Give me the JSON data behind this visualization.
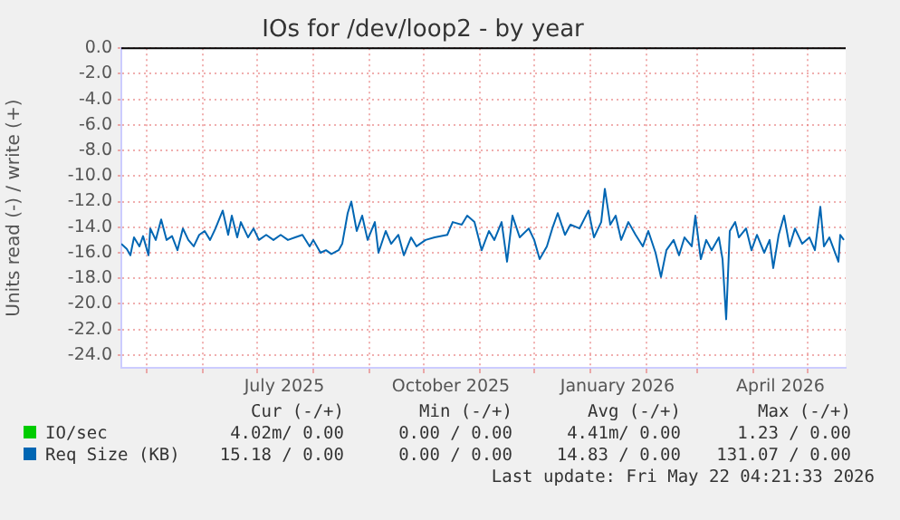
{
  "chart_data": {
    "type": "line",
    "title": "IOs for /dev/loop2 - by year",
    "ylabel": "Units read (-) / write (+)",
    "xlim": [
      "2025-04-17",
      "2026-05-22"
    ],
    "xticks": [
      {
        "value": "2025-05-01",
        "label": null
      },
      {
        "value": "2025-06-01",
        "label": null
      },
      {
        "value": "2025-07-01",
        "label": null
      },
      {
        "value": "2025-07-16",
        "label": "July 2025"
      },
      {
        "value": "2025-08-01",
        "label": null
      },
      {
        "value": "2025-09-01",
        "label": null
      },
      {
        "value": "2025-10-01",
        "label": null
      },
      {
        "value": "2025-10-16",
        "label": "October 2025"
      },
      {
        "value": "2025-11-01",
        "label": null
      },
      {
        "value": "2025-12-01",
        "label": null
      },
      {
        "value": "2026-01-01",
        "label": null
      },
      {
        "value": "2026-01-16",
        "label": "January 2026"
      },
      {
        "value": "2026-02-01",
        "label": null
      },
      {
        "value": "2026-03-01",
        "label": null
      },
      {
        "value": "2026-04-01",
        "label": null
      },
      {
        "value": "2026-04-16",
        "label": "April 2026"
      },
      {
        "value": "2026-05-01",
        "label": null
      }
    ],
    "ylim": [
      -25,
      0
    ],
    "yticks": [
      {
        "value": 0,
        "label": "0.0"
      },
      {
        "value": -2,
        "label": "-2.0"
      },
      {
        "value": -4,
        "label": "-4.0"
      },
      {
        "value": -6,
        "label": "-6.0"
      },
      {
        "value": -8,
        "label": "-8.0"
      },
      {
        "value": -10,
        "label": "-10.0"
      },
      {
        "value": -12,
        "label": "-12.0"
      },
      {
        "value": -14,
        "label": "-14.0"
      },
      {
        "value": -16,
        "label": "-16.0"
      },
      {
        "value": -18,
        "label": "-18.0"
      },
      {
        "value": -20,
        "label": "-20.0"
      },
      {
        "value": -22,
        "label": "-22.0"
      },
      {
        "value": -24,
        "label": "-24.0"
      }
    ],
    "grid": true,
    "legend": "bottom",
    "ref_lines": [
      {
        "axis": "y",
        "value": 0,
        "color": "#000000"
      }
    ],
    "series": [
      {
        "name": "IO/sec",
        "color": "#00cc00"
      },
      {
        "name": "Req Size (KB)",
        "color": "#0066b3",
        "x": [
          "2025-04-17",
          "2025-04-20",
          "2025-04-22",
          "2025-04-24",
          "2025-04-27",
          "2025-04-29",
          "2025-05-02",
          "2025-05-03",
          "2025-05-06",
          "2025-05-09",
          "2025-05-12",
          "2025-05-15",
          "2025-05-18",
          "2025-05-21",
          "2025-05-24",
          "2025-05-27",
          "2025-05-30",
          "2025-06-02",
          "2025-06-05",
          "2025-06-08",
          "2025-06-12",
          "2025-06-15",
          "2025-06-17",
          "2025-06-20",
          "2025-06-22",
          "2025-06-26",
          "2025-06-29",
          "2025-07-02",
          "2025-07-06",
          "2025-07-10",
          "2025-07-14",
          "2025-07-18",
          "2025-07-22",
          "2025-07-26",
          "2025-07-30",
          "2025-08-01",
          "2025-08-05",
          "2025-08-08",
          "2025-08-11",
          "2025-08-15",
          "2025-08-17",
          "2025-08-20",
          "2025-08-22",
          "2025-08-25",
          "2025-08-28",
          "2025-08-31",
          "2025-09-04",
          "2025-09-06",
          "2025-09-10",
          "2025-09-13",
          "2025-09-17",
          "2025-09-20",
          "2025-09-24",
          "2025-09-27",
          "2025-10-02",
          "2025-10-07",
          "2025-10-14",
          "2025-10-17",
          "2025-10-22",
          "2025-10-25",
          "2025-10-29",
          "2025-11-02",
          "2025-11-06",
          "2025-11-09",
          "2025-11-13",
          "2025-11-16",
          "2025-11-19",
          "2025-11-23",
          "2025-11-28",
          "2025-12-01",
          "2025-12-04",
          "2025-12-08",
          "2025-12-11",
          "2025-12-14",
          "2025-12-18",
          "2025-12-21",
          "2025-12-26",
          "2025-12-31",
          "2026-01-03",
          "2026-01-07",
          "2026-01-09",
          "2026-01-12",
          "2026-01-15",
          "2026-01-18",
          "2026-01-22",
          "2026-01-26",
          "2026-01-30",
          "2026-02-02",
          "2026-02-06",
          "2026-02-09",
          "2026-02-12",
          "2026-02-16",
          "2026-02-19",
          "2026-02-22",
          "2026-02-26",
          "2026-02-28",
          "2026-03-03",
          "2026-03-06",
          "2026-03-09",
          "2026-03-13",
          "2026-03-15",
          "2026-03-17",
          "2026-03-19",
          "2026-03-22",
          "2026-03-24",
          "2026-03-28",
          "2026-03-31",
          "2026-04-03",
          "2026-04-07",
          "2026-04-10",
          "2026-04-12",
          "2026-04-15",
          "2026-04-18",
          "2026-04-21",
          "2026-04-24",
          "2026-04-28",
          "2026-05-02",
          "2026-05-05",
          "2026-05-08",
          "2026-05-10",
          "2026-05-13",
          "2026-05-18",
          "2026-05-19",
          "2026-05-21"
        ],
        "values": [
          -15.3,
          -15.7,
          -16.2,
          -14.8,
          -15.5,
          -14.7,
          -16.2,
          -14.1,
          -15,
          -13.4,
          -15,
          -14.7,
          -15.8,
          -14.1,
          -15,
          -15.5,
          -14.6,
          -14.3,
          -15,
          -14.1,
          -12.7,
          -14.6,
          -13.1,
          -14.8,
          -13.6,
          -14.8,
          -14.1,
          -15,
          -14.6,
          -15,
          -14.6,
          -15,
          -14.8,
          -14.6,
          -15.5,
          -15,
          -16,
          -15.8,
          -16.1,
          -15.8,
          -15.3,
          -12.9,
          -12,
          -14.3,
          -13.1,
          -15,
          -13.6,
          -16,
          -14.3,
          -15.3,
          -14.6,
          -16.2,
          -14.8,
          -15.5,
          -15,
          -14.8,
          -14.6,
          -13.6,
          -13.8,
          -13.1,
          -13.6,
          -15.8,
          -14.3,
          -15,
          -13.6,
          -16.7,
          -13.1,
          -14.8,
          -14.1,
          -15,
          -16.5,
          -15.5,
          -14.1,
          -12.9,
          -14.6,
          -13.8,
          -14.1,
          -12.7,
          -14.8,
          -13.6,
          -11,
          -13.8,
          -13.1,
          -15,
          -13.6,
          -14.6,
          -15.5,
          -14.3,
          -16,
          -17.9,
          -15.8,
          -15,
          -16.2,
          -14.8,
          -15.5,
          -13.1,
          -16.5,
          -15,
          -15.8,
          -14.8,
          -16.5,
          -21.2,
          -14.3,
          -13.6,
          -14.8,
          -14.1,
          -15.8,
          -14.6,
          -16,
          -15,
          -17.2,
          -14.6,
          -13.1,
          -15.5,
          -14.1,
          -15.3,
          -14.8,
          -15.8,
          -12.4,
          -15.5,
          -14.8,
          -16.7,
          -14.6,
          -15
        ]
      }
    ],
    "annotations": [
      "Cur (-/+)",
      "Min (-/+)",
      "Avg (-/+)",
      "Max (-/+)",
      "4.02m/ 0.00",
      "0.00 / 0.00",
      "4.41m/ 0.00",
      "1.23 / 0.00",
      "15.18 / 0.00",
      "0.00 / 0.00",
      "14.83 / 0.00",
      "131.07 / 0.00",
      "Last update: Fri May 22 04:21:33 2026"
    ]
  }
}
